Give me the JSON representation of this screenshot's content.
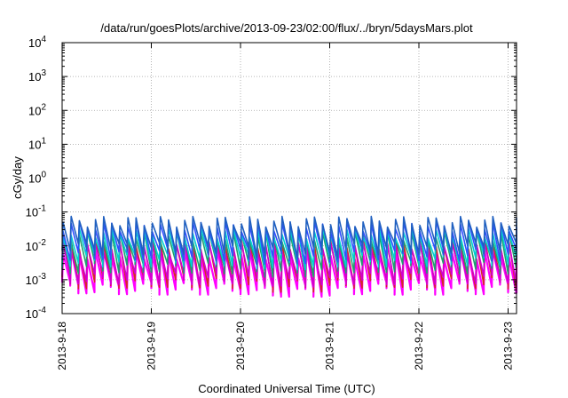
{
  "chart_data": {
    "type": "line",
    "title": "/data/run/goesPlots/archive/2013-09-23/02:00/flux/../bryn/5daysMars.plot",
    "xlabel": "Coordinated Universal Time (UTC)",
    "ylabel": "cGy/day",
    "y_scale": "log",
    "ylim": [
      0.0001,
      10000
    ],
    "y_ticks": [
      {
        "base": "10",
        "exp": "-4"
      },
      {
        "base": "10",
        "exp": "-3"
      },
      {
        "base": "10",
        "exp": "-2"
      },
      {
        "base": "10",
        "exp": "-1"
      },
      {
        "base": "10",
        "exp": "0"
      },
      {
        "base": "10",
        "exp": "1"
      },
      {
        "base": "10",
        "exp": "2"
      },
      {
        "base": "10",
        "exp": "3"
      },
      {
        "base": "10",
        "exp": "4"
      }
    ],
    "xlim": [
      "2013-09-18",
      "2013-09-23 02:00"
    ],
    "x_ticks": [
      "2013-9-18",
      "2013-9-19",
      "2013-9-20",
      "2013-9-21",
      "2013-9-22",
      "2013-9-23"
    ],
    "grid": true,
    "sawtooth_teeth_per_day": 11,
    "series": [
      {
        "color": "#ff00ff",
        "peak": 0.006,
        "trough": 0.0006
      },
      {
        "color": "#d62728",
        "peak": 0.012,
        "trough": 0.0009
      },
      {
        "color": "#d000d0",
        "peak": 0.009,
        "trough": 0.0012
      },
      {
        "color": "#1f9f6f",
        "peak": 0.02,
        "trough": 0.0025
      },
      {
        "color": "#00d0d0",
        "peak": 0.025,
        "trough": 0.004
      },
      {
        "color": "#3050ff",
        "peak": 0.04,
        "trough": 0.006
      },
      {
        "color": "#2060c0",
        "peak": 0.055,
        "trough": 0.009
      }
    ],
    "colors": {
      "axis": "#000000",
      "grid": "#a0a0a0"
    }
  }
}
